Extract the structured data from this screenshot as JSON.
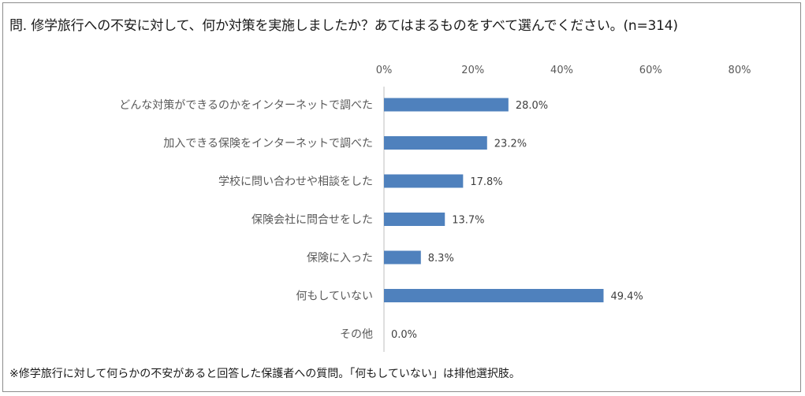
{
  "title": "問. 修学旅行への不安に対して、何か対策を実施しましたか？あてはまるものをすべて選んでください。(n=314)",
  "footnote": "※修学旅行に対して何らかの不安があると回答した保護者への質問。「何もしていない」は排他選択肢。",
  "chart_data": {
    "type": "bar",
    "orientation": "horizontal",
    "title": "問. 修学旅行への不安に対して、何か対策を実施しましたか？あてはまるものをすべて選んでください。(n=314)",
    "categories": [
      "どんな対策ができるのかをインターネットで調べた",
      "加入できる保険をインターネットで調べた",
      "学校に問い合わせや相談をした",
      "保険会社に問合せをした",
      "保険に入った",
      "何もしていない",
      "その他"
    ],
    "values": [
      28.0,
      23.2,
      17.8,
      13.7,
      8.3,
      49.4,
      0.0
    ],
    "data_labels": [
      "28.0%",
      "23.2%",
      "17.8%",
      "13.7%",
      "8.3%",
      "49.4%",
      "0.0%"
    ],
    "xlim": [
      0,
      80
    ],
    "ticks": [
      0,
      20,
      40,
      60,
      80
    ],
    "tick_labels": [
      "0%",
      "20%",
      "40%",
      "60%",
      "80%"
    ],
    "axis_position": "top",
    "grid": false,
    "legend": "none",
    "bar_color": "#4f81bd"
  }
}
